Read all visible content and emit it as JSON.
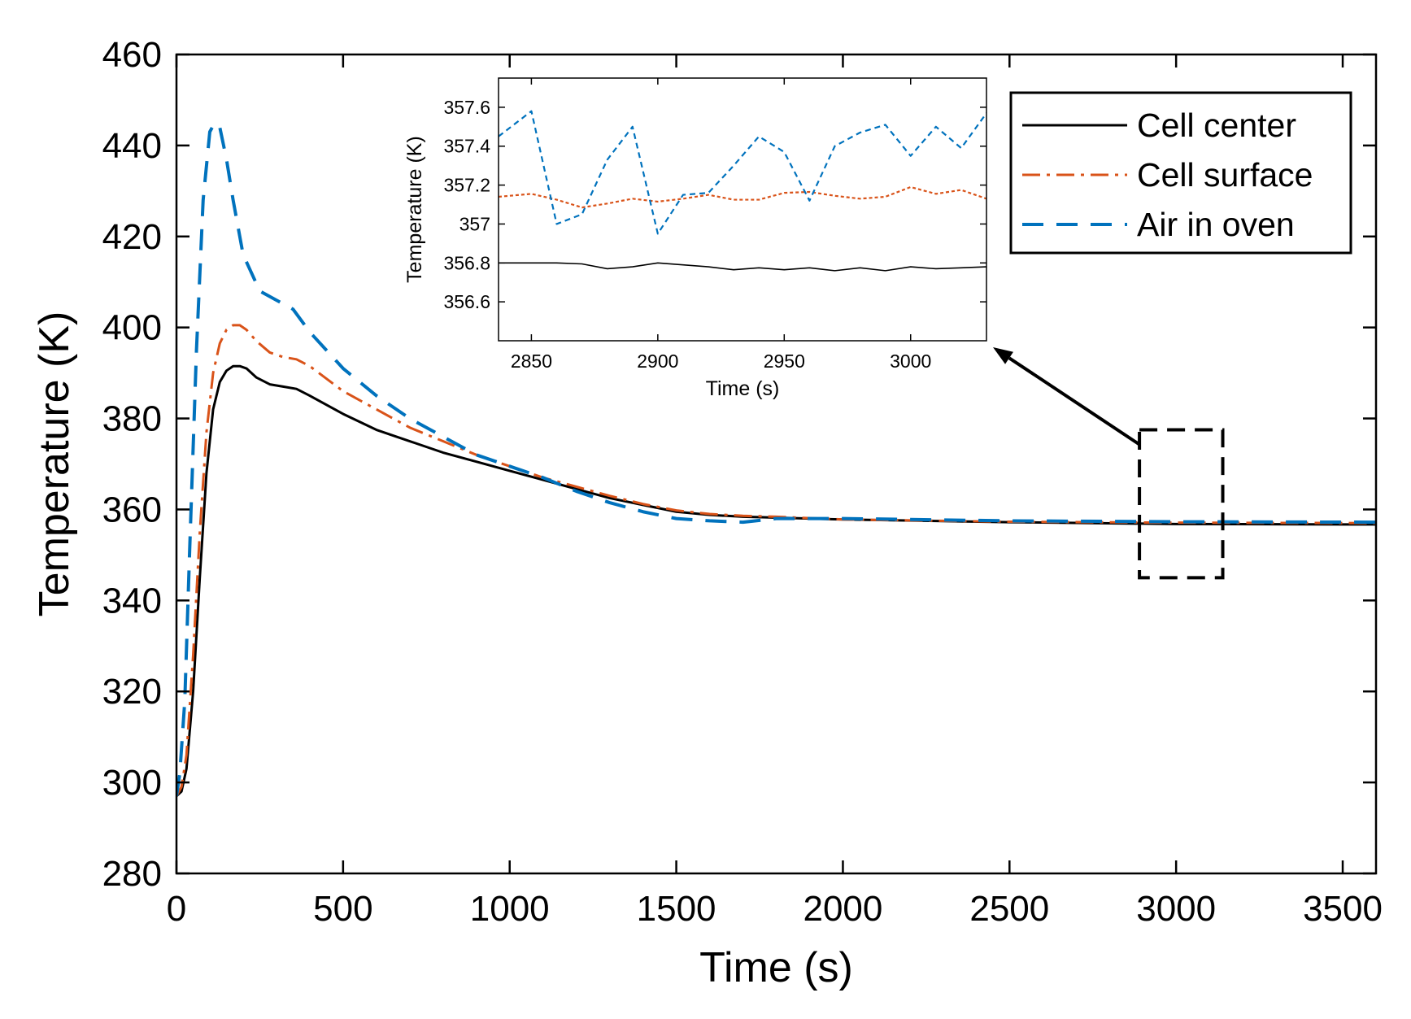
{
  "chart_data": [
    {
      "type": "line",
      "title": "",
      "xlabel": "Time (s)",
      "ylabel": "Temperature (K)",
      "xlim": [
        0,
        3600
      ],
      "ylim": [
        280,
        460
      ],
      "xticks": [
        0,
        500,
        1000,
        1500,
        2000,
        2500,
        3000,
        3500
      ],
      "yticks": [
        280,
        300,
        320,
        340,
        360,
        380,
        400,
        420,
        440,
        460
      ],
      "grid": false,
      "legend_position": "top-right",
      "series": [
        {
          "name": "Cell center",
          "color": "#000000",
          "style": "solid",
          "x": [
            0,
            15,
            30,
            50,
            70,
            90,
            110,
            130,
            150,
            170,
            190,
            210,
            240,
            280,
            320,
            360,
            400,
            500,
            600,
            700,
            800,
            900,
            1000,
            1100,
            1200,
            1300,
            1400,
            1500,
            1600,
            1700,
            1800,
            2000,
            2500,
            3000,
            3600
          ],
          "y": [
            297,
            298,
            303,
            320,
            345,
            368,
            382,
            388,
            390.5,
            391.5,
            391.5,
            391,
            389,
            387.5,
            387,
            386.5,
            385,
            381,
            377.5,
            375,
            372.5,
            370.5,
            368.5,
            366.5,
            364.5,
            362.5,
            361,
            359.5,
            358.8,
            358.4,
            358.2,
            357.8,
            357.2,
            356.8,
            356.7
          ]
        },
        {
          "name": "Cell surface",
          "color": "#d95319",
          "style": "dashdot",
          "x": [
            0,
            15,
            30,
            50,
            70,
            90,
            110,
            130,
            150,
            170,
            190,
            210,
            240,
            280,
            320,
            360,
            400,
            500,
            600,
            700,
            800,
            900,
            1000,
            1100,
            1200,
            1300,
            1400,
            1500,
            1600,
            1700,
            1800,
            2000,
            2500,
            3000,
            3600
          ],
          "y": [
            297,
            299,
            306,
            328,
            355,
            377,
            390,
            396.5,
            399.5,
            400.5,
            400.5,
            399.5,
            397,
            394.5,
            393.5,
            393,
            391.5,
            386,
            382,
            378,
            375,
            372,
            369.5,
            367,
            365,
            363,
            361.2,
            359.8,
            359,
            358.6,
            358.4,
            357.8,
            357.3,
            357.1,
            357
          ]
        },
        {
          "name": "Air in oven",
          "color": "#0072bd",
          "style": "dashed",
          "x": [
            0,
            10,
            25,
            40,
            60,
            80,
            100,
            115,
            130,
            150,
            170,
            200,
            250,
            300,
            350,
            400,
            500,
            600,
            700,
            800,
            900,
            1000,
            1100,
            1200,
            1300,
            1400,
            1500,
            1600,
            1700,
            1800,
            2000,
            2500,
            3000,
            3600
          ],
          "y": [
            297,
            302,
            318,
            352,
            395,
            428,
            443,
            445,
            444,
            437,
            428,
            416,
            408,
            406,
            404,
            399,
            391,
            385,
            380,
            376,
            372,
            369.5,
            367,
            364,
            361.5,
            359.5,
            358,
            357.5,
            357.2,
            358,
            358,
            357.5,
            357.3,
            357.2
          ]
        }
      ]
    },
    {
      "type": "line",
      "title": "",
      "xlabel": "Time (s)",
      "ylabel": "Temperature (K)",
      "xlim": [
        2837,
        3030
      ],
      "ylim": [
        356.4,
        357.75
      ],
      "xticks": [
        2850,
        2900,
        2950,
        3000
      ],
      "yticks": [
        356.6,
        356.8,
        357,
        357.2,
        357.4,
        357.6
      ],
      "grid": false,
      "series": [
        {
          "name": "Cell center",
          "color": "#000000",
          "style": "solid",
          "x": [
            2837,
            2850,
            2860,
            2870,
            2880,
            2890,
            2900,
            2910,
            2920,
            2930,
            2940,
            2950,
            2960,
            2970,
            2980,
            2990,
            3000,
            3010,
            3020,
            3030
          ],
          "y": [
            356.8,
            356.8,
            356.8,
            356.795,
            356.77,
            356.78,
            356.8,
            356.79,
            356.78,
            356.765,
            356.775,
            356.765,
            356.775,
            356.76,
            356.775,
            356.76,
            356.78,
            356.77,
            356.775,
            356.78
          ]
        },
        {
          "name": "Cell surface",
          "color": "#d95319",
          "style": "dotted",
          "x": [
            2837,
            2850,
            2860,
            2870,
            2880,
            2890,
            2900,
            2910,
            2920,
            2930,
            2940,
            2950,
            2960,
            2970,
            2980,
            2990,
            3000,
            3010,
            3020,
            3030
          ],
          "y": [
            357.14,
            357.155,
            357.125,
            357.085,
            357.105,
            357.13,
            357.115,
            357.13,
            357.15,
            357.125,
            357.125,
            357.16,
            357.165,
            357.145,
            357.13,
            357.14,
            357.19,
            357.155,
            357.175,
            357.13
          ]
        },
        {
          "name": "Air in oven",
          "color": "#0072bd",
          "style": "dotted",
          "x": [
            2837,
            2850,
            2860,
            2870,
            2880,
            2890,
            2900,
            2910,
            2920,
            2930,
            2940,
            2950,
            2960,
            2970,
            2980,
            2990,
            3000,
            3010,
            3020,
            3030
          ],
          "y": [
            357.45,
            357.58,
            357.0,
            357.05,
            357.33,
            357.5,
            356.95,
            357.15,
            357.16,
            357.3,
            357.45,
            357.37,
            357.12,
            357.4,
            357.47,
            357.51,
            357.35,
            357.5,
            357.39,
            357.57
          ]
        }
      ]
    }
  ]
}
